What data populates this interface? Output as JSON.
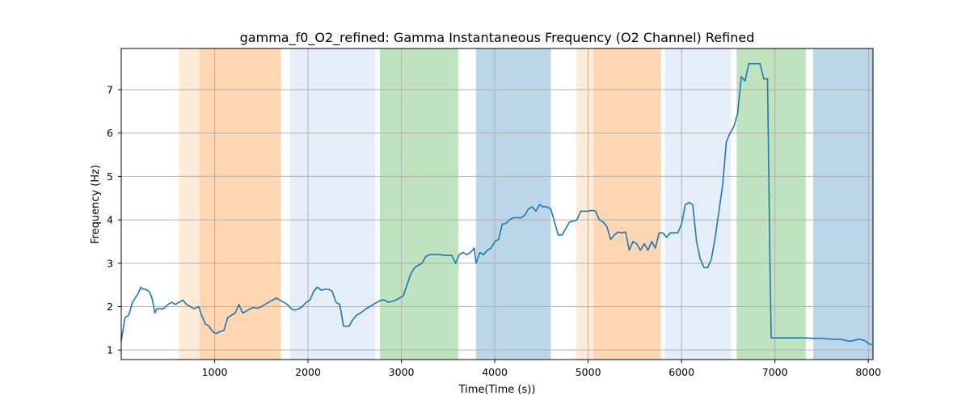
{
  "chart_data": {
    "type": "line",
    "title": "gamma_f0_O2_refined: Gamma Instantaneous Frequency (O2 Channel) Refined",
    "xlabel": "Time(Time (s))",
    "ylabel": "Frequency (Hz)",
    "xlim": [
      0,
      8050
    ],
    "ylim": [
      0.78,
      7.95
    ],
    "xticks": [
      1000,
      2000,
      3000,
      4000,
      5000,
      6000,
      7000,
      8000
    ],
    "yticks": [
      1,
      2,
      3,
      4,
      5,
      6,
      7
    ],
    "grid": true,
    "line_color": "#1f77b4",
    "bands": [
      {
        "x0": 620,
        "x1": 840,
        "color": "#ff7f0e",
        "opacity": 0.16
      },
      {
        "x0": 840,
        "x1": 1710,
        "color": "#ff7f0e",
        "opacity": 0.32
      },
      {
        "x0": 1810,
        "x1": 2720,
        "color": "#aec7e8",
        "opacity": 0.32
      },
      {
        "x0": 2770,
        "x1": 3610,
        "color": "#2ca02c",
        "opacity": 0.3
      },
      {
        "x0": 3800,
        "x1": 4600,
        "color": "#1f77b4",
        "opacity": 0.3
      },
      {
        "x0": 4870,
        "x1": 5060,
        "color": "#ff7f0e",
        "opacity": 0.16
      },
      {
        "x0": 5060,
        "x1": 5780,
        "color": "#ff7f0e",
        "opacity": 0.32
      },
      {
        "x0": 5820,
        "x1": 6530,
        "color": "#aec7e8",
        "opacity": 0.32
      },
      {
        "x0": 6590,
        "x1": 7330,
        "color": "#2ca02c",
        "opacity": 0.3
      },
      {
        "x0": 7410,
        "x1": 8050,
        "color": "#1f77b4",
        "opacity": 0.3
      }
    ],
    "series": [
      {
        "x": [
          0,
          40,
          80,
          120,
          150,
          180,
          210,
          230,
          260,
          300,
          330,
          360,
          380,
          410,
          450,
          500,
          540,
          580,
          620,
          660,
          700,
          740,
          780,
          830,
          860,
          900,
          940,
          980,
          1020,
          1060,
          1100,
          1140,
          1180,
          1220,
          1260,
          1300,
          1340,
          1380,
          1420,
          1460,
          1500,
          1540,
          1580,
          1620,
          1660,
          1700,
          1740,
          1780,
          1820,
          1860,
          1900,
          1940,
          1980,
          2020,
          2060,
          2100,
          2140,
          2180,
          2220,
          2260,
          2300,
          2340,
          2380,
          2420,
          2440,
          2480,
          2520,
          2560,
          2590,
          2620,
          2660,
          2700,
          2740,
          2780,
          2820,
          2860,
          2900,
          2940,
          2980,
          3020,
          3060,
          3100,
          3140,
          3180,
          3220,
          3260,
          3300,
          3340,
          3380,
          3420,
          3460,
          3500,
          3540,
          3580,
          3620,
          3660,
          3700,
          3740,
          3780,
          3800,
          3840,
          3880,
          3920,
          3960,
          4000,
          4040,
          4080,
          4120,
          4160,
          4200,
          4240,
          4280,
          4320,
          4360,
          4400,
          4440,
          4480,
          4520,
          4560,
          4600,
          4640,
          4680,
          4720,
          4760,
          4800,
          4840,
          4880,
          4920,
          4960,
          5000,
          5040,
          5080,
          5120,
          5160,
          5200,
          5240,
          5280,
          5320,
          5360,
          5400,
          5440,
          5480,
          5520,
          5560,
          5600,
          5640,
          5680,
          5720,
          5760,
          5800,
          5840,
          5880,
          5920,
          5960,
          6000,
          6040,
          6080,
          6120,
          6160,
          6200,
          6240,
          6280,
          6320,
          6360,
          6400,
          6440,
          6480,
          6520,
          6560,
          6600,
          6640,
          6680,
          6720,
          6760,
          6800,
          6840,
          6880,
          6920,
          6950,
          6960,
          6980,
          7020,
          7100,
          7200,
          7330,
          7400,
          7500,
          7600,
          7700,
          7800,
          7900,
          7960,
          8000,
          8040
        ],
        "y": [
          1.2,
          1.75,
          1.8,
          2.1,
          2.2,
          2.3,
          2.45,
          2.4,
          2.4,
          2.35,
          2.2,
          1.85,
          1.95,
          1.95,
          1.95,
          2.05,
          2.1,
          2.05,
          2.1,
          2.15,
          2.05,
          2.0,
          1.95,
          2.0,
          1.8,
          1.6,
          1.55,
          1.42,
          1.38,
          1.43,
          1.45,
          1.75,
          1.8,
          1.85,
          2.05,
          1.85,
          1.9,
          1.95,
          1.98,
          1.96,
          2.0,
          2.05,
          2.1,
          2.15,
          2.2,
          2.15,
          2.1,
          2.05,
          1.95,
          1.92,
          1.95,
          2.0,
          2.1,
          2.15,
          2.35,
          2.45,
          2.38,
          2.4,
          2.4,
          2.35,
          2.1,
          2.05,
          1.55,
          1.55,
          1.55,
          1.7,
          1.8,
          1.85,
          1.9,
          1.95,
          2.0,
          2.05,
          2.1,
          2.15,
          2.15,
          2.1,
          2.12,
          2.15,
          2.2,
          2.25,
          2.5,
          2.75,
          2.9,
          2.95,
          3.0,
          3.15,
          3.2,
          3.2,
          3.2,
          3.2,
          3.18,
          3.18,
          3.18,
          3.0,
          3.2,
          3.25,
          3.2,
          3.25,
          3.35,
          3.0,
          3.25,
          3.2,
          3.3,
          3.35,
          3.5,
          3.55,
          3.9,
          3.92,
          4.0,
          4.05,
          4.05,
          4.05,
          4.1,
          4.25,
          4.3,
          4.2,
          4.35,
          4.3,
          4.3,
          4.25,
          3.95,
          3.65,
          3.65,
          3.8,
          3.95,
          3.97,
          4.0,
          4.2,
          4.2,
          4.2,
          4.22,
          4.2,
          4.0,
          3.95,
          3.85,
          3.55,
          3.65,
          3.72,
          3.7,
          3.72,
          3.3,
          3.5,
          3.45,
          3.3,
          3.45,
          3.3,
          3.5,
          3.35,
          3.7,
          3.7,
          3.6,
          3.7,
          3.7,
          3.7,
          3.9,
          4.35,
          4.4,
          4.35,
          3.5,
          3.1,
          2.9,
          2.9,
          3.1,
          3.6,
          4.2,
          4.8,
          5.8,
          6.0,
          6.15,
          6.45,
          7.3,
          7.2,
          7.6,
          7.6,
          7.6,
          7.6,
          7.25,
          7.25,
          2.5,
          1.28,
          1.28,
          1.28,
          1.28,
          1.28,
          1.28,
          1.27,
          1.27,
          1.25,
          1.25,
          1.2,
          1.25,
          1.22,
          1.15,
          1.12
        ]
      }
    ]
  }
}
